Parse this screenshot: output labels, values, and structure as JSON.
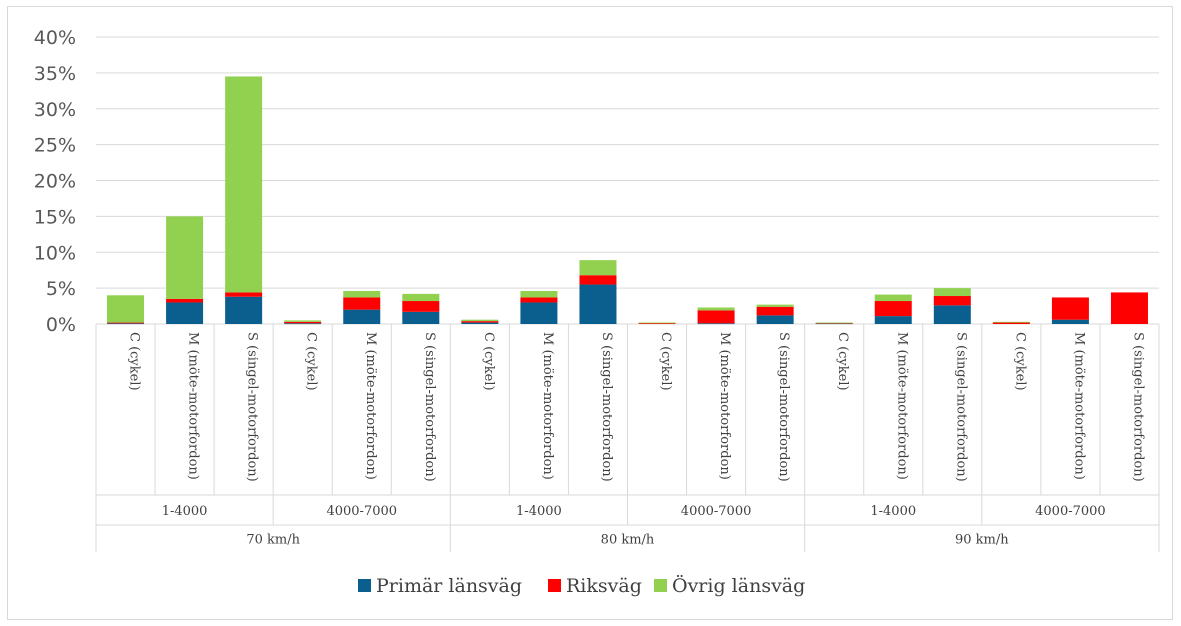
{
  "chart_data": {
    "type": "bar",
    "stacked": true,
    "ylim": [
      0,
      40
    ],
    "yticks": [
      "0%",
      "5%",
      "10%",
      "15%",
      "20%",
      "25%",
      "30%",
      "35%",
      "40%"
    ],
    "grid": true,
    "legend_position": "bottom",
    "speed_groups": [
      "70 km/h",
      "80 km/h",
      "90 km/h"
    ],
    "traffic_groups": [
      "1-4000",
      "4000-7000"
    ],
    "categories": [
      "C (cykel)",
      "M (möte-motorfordon)",
      "S (singel-motorfordon)",
      "C (cykel)",
      "M (möte-motorfordon)",
      "S (singel-motorfordon)",
      "C (cykel)",
      "M (möte-motorfordon)",
      "S (singel-motorfordon)",
      "C (cykel)",
      "M (möte-motorfordon)",
      "S (singel-motorfordon)",
      "C (cykel)",
      "M (möte-motorfordon)",
      "S (singel-motorfordon)",
      "C (cykel)",
      "M (möte-motorfordon)",
      "S (singel-motorfordon)"
    ],
    "series": [
      {
        "name": "Primär länsväg",
        "color": "#0b5f8f",
        "values": [
          0.1,
          3.0,
          3.8,
          0.1,
          2.0,
          1.7,
          0.2,
          3.0,
          5.5,
          0.0,
          0.1,
          1.2,
          0.1,
          1.1,
          2.6,
          0.0,
          0.6,
          0.0
        ]
      },
      {
        "name": "Riksväg",
        "color": "#ff0000",
        "values": [
          0.1,
          0.5,
          0.6,
          0.2,
          1.7,
          1.5,
          0.2,
          0.7,
          1.3,
          0.15,
          1.8,
          1.2,
          0.05,
          2.1,
          1.3,
          0.25,
          3.1,
          4.4
        ]
      },
      {
        "name": "Övrig länsväg",
        "color": "#92d050",
        "values": [
          3.8,
          11.5,
          30.1,
          0.2,
          0.9,
          1.0,
          0.2,
          0.9,
          2.1,
          0.05,
          0.4,
          0.3,
          0.05,
          0.9,
          1.1,
          0.05,
          0.0,
          0.0
        ]
      }
    ]
  }
}
